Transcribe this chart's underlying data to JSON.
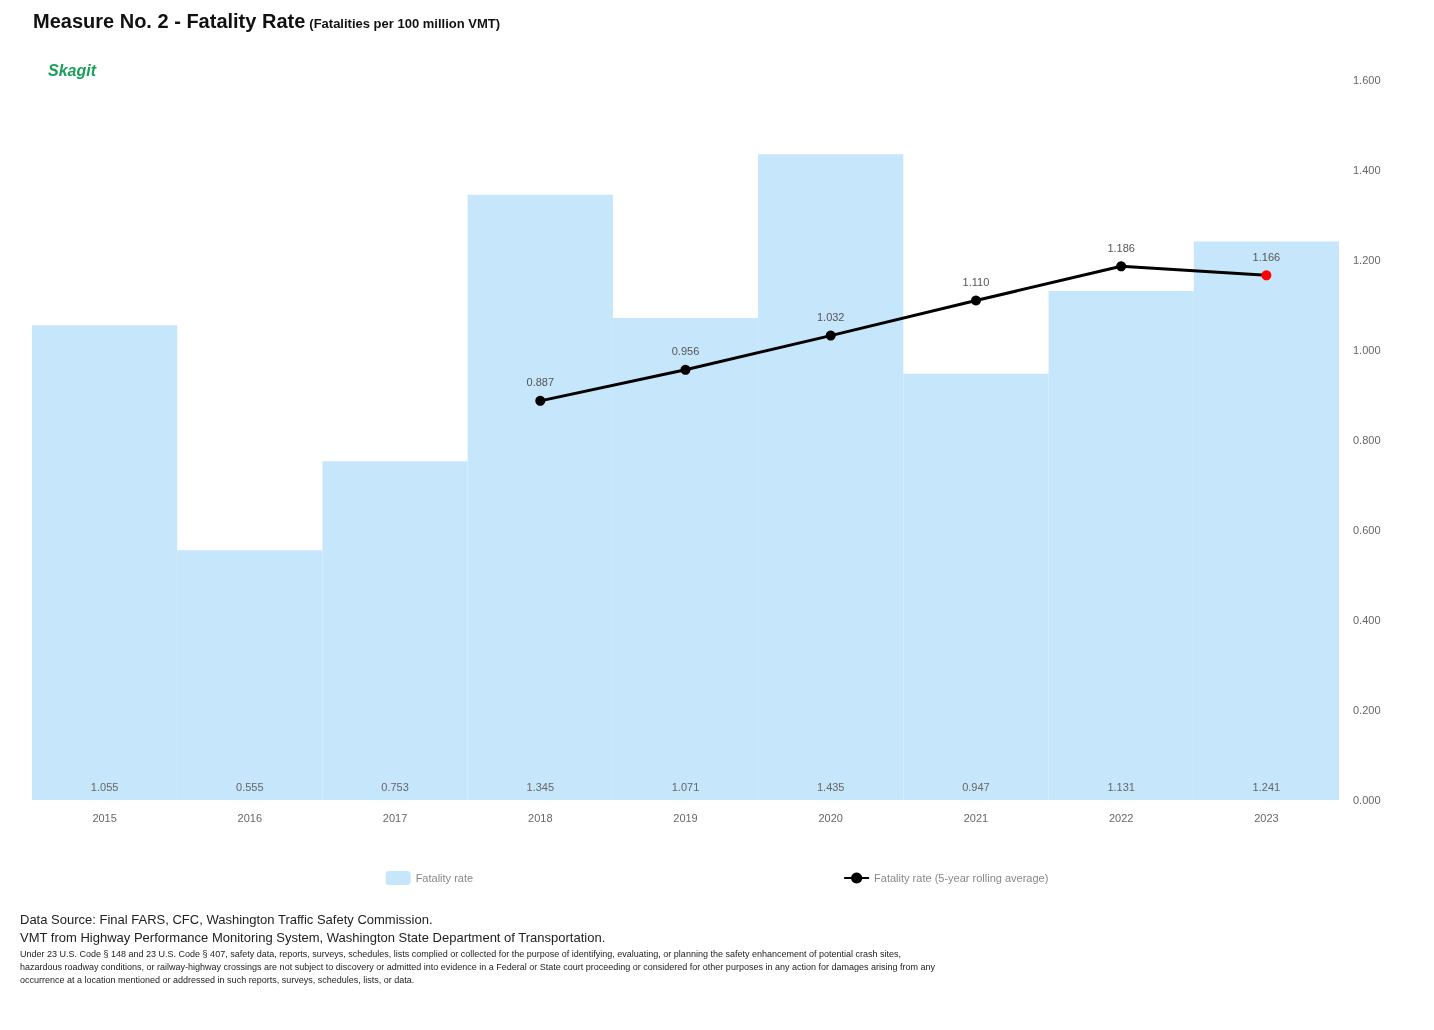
{
  "chart_data": {
    "type": "bar",
    "title": "Measure No. 2 - Fatality Rate",
    "subtitle": "(Fatalities per 100 million VMT)",
    "categories": [
      "2015",
      "2016",
      "2017",
      "2018",
      "2019",
      "2020",
      "2021",
      "2022",
      "2023"
    ],
    "series": [
      {
        "name": "Fatality rate",
        "color": "#c6e6fb",
        "values": [
          1.055,
          0.555,
          0.753,
          1.345,
          1.071,
          1.435,
          0.947,
          1.131,
          1.241
        ]
      },
      {
        "name": "Fatality rate (5-year rolling average)",
        "type": "line",
        "color": "#000000",
        "colors": [
          "#000000",
          "#000000",
          "#000000",
          "#000000",
          "#000000",
          "#000000",
          "#000000",
          "#000000",
          "#ff0000"
        ],
        "values": [
          null,
          null,
          null,
          0.887,
          0.956,
          1.032,
          1.11,
          1.186,
          1.166
        ],
        "value_labels": [
          null,
          null,
          null,
          "0.887",
          "0.956",
          "1.032",
          "1.110",
          "1.186",
          "1.166"
        ]
      }
    ],
    "ylim": [
      0,
      1.6
    ],
    "yticks": [
      {
        "value": 0,
        "label": "0.000"
      },
      {
        "value": 0.2,
        "label": "0.200"
      },
      {
        "value": 0.4,
        "label": "0.400"
      },
      {
        "value": 0.6,
        "label": "0.600"
      },
      {
        "value": 0.8,
        "label": "0.800"
      },
      {
        "value": 1,
        "label": "1.000"
      },
      {
        "value": 1.2,
        "label": "1.200"
      },
      {
        "value": 1.4,
        "label": "1.400"
      },
      {
        "value": 1.6,
        "label": "1.600"
      }
    ],
    "data_labels": true,
    "legend": "bottom",
    "marker": "circle",
    "line_style": "solid",
    "annotations": [
      "Skagit",
      "Data Source: Final FARS, CFC, Washington Traffic Safety Commission.",
      "VMT from Highway Performance Monitoring System, Washington State Department of Transportation.",
      "Under 23 U.S. Code § 148 and 23 U.S. Code § 407, safety data, reports, surveys, schedules, lists complied or collected for the purpose of identifying, evaluating, or planning the safety enhancement of potential crash sites, hazardous roadway conditions, or railway-highway crossings are not subject to discovery or admitted into evidence in a Federal or State court proceeding or considered for other purposes in any action for damages arising from any occurrence at a location mentioned or addressed in such reports, surveys, schedules, lists, or data."
    ]
  }
}
